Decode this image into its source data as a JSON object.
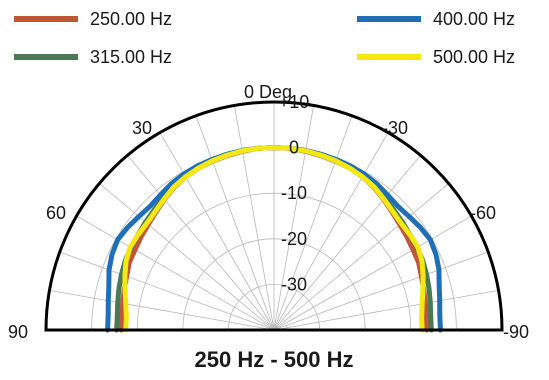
{
  "chart_data": {
    "type": "polar",
    "title": "250 Hz - 500 Hz",
    "angle_labels": [
      "90",
      "60",
      "30",
      "0 Deg",
      "-30",
      "-60",
      "-90"
    ],
    "angle_values": [
      90,
      60,
      30,
      0,
      -30,
      -60,
      -90
    ],
    "radial_ticks": [
      "+10",
      "0",
      "-10",
      "-20",
      "-30"
    ],
    "radial_values": [
      10,
      0,
      -10,
      -20,
      -30
    ],
    "rlim": [
      -40,
      10
    ],
    "grid": true,
    "angle_grid_step_deg": 10,
    "legend_position": "top",
    "series": [
      {
        "name": "250.00 Hz",
        "color": "#c0553a",
        "angles": [
          90,
          85,
          80,
          75,
          70,
          65,
          60,
          55,
          50,
          45,
          40,
          35,
          30,
          25,
          20,
          15,
          10,
          5,
          0,
          -5,
          -10,
          -15,
          -20,
          -25,
          -30,
          -35,
          -40,
          -45,
          -50,
          -55,
          -60,
          -65,
          -70,
          -75,
          -80,
          -85,
          -90
        ],
        "values": [
          -6.5,
          -6.5,
          -6.3,
          -6,
          -5.6,
          -5,
          -4.8,
          -4.4,
          -4,
          -3.4,
          -2.6,
          -1.8,
          -1.2,
          -0.8,
          -0.6,
          -0.4,
          -0.2,
          0,
          0,
          0,
          -0.2,
          -0.4,
          -0.6,
          -0.8,
          -1.2,
          -1.8,
          -2.6,
          -3.4,
          -4,
          -4.4,
          -4.8,
          -5,
          -5.6,
          -6,
          -6.3,
          -6.5,
          -6.5
        ]
      },
      {
        "name": "315.00 Hz",
        "color": "#4a7a55",
        "angles": [
          90,
          85,
          80,
          75,
          70,
          65,
          60,
          55,
          50,
          45,
          40,
          35,
          30,
          25,
          20,
          15,
          10,
          5,
          0,
          -5,
          -10,
          -15,
          -20,
          -25,
          -30,
          -35,
          -40,
          -45,
          -50,
          -55,
          -60,
          -65,
          -70,
          -75,
          -80,
          -85,
          -90
        ],
        "values": [
          -5.5,
          -5.5,
          -5.2,
          -4.8,
          -4.4,
          -4,
          -3.8,
          -3.6,
          -3.2,
          -2.8,
          -2.2,
          -1.5,
          -1,
          -0.6,
          -0.4,
          -0.3,
          -0.1,
          0,
          0,
          0,
          -0.1,
          -0.3,
          -0.4,
          -0.6,
          -1,
          -1.5,
          -2.2,
          -2.8,
          -3.2,
          -3.6,
          -3.8,
          -4,
          -4.4,
          -4.8,
          -5.2,
          -5.5,
          -5.5
        ]
      },
      {
        "name": "400.00 Hz",
        "color": "#1f6fb8",
        "angles": [
          90,
          85,
          80,
          75,
          70,
          65,
          60,
          55,
          50,
          45,
          40,
          35,
          30,
          25,
          20,
          15,
          10,
          5,
          0,
          -5,
          -10,
          -15,
          -20,
          -25,
          -30,
          -35,
          -40,
          -45,
          -50,
          -55,
          -60,
          -65,
          -70,
          -75,
          -80,
          -85,
          -90
        ],
        "values": [
          -3.5,
          -3.5,
          -3.1,
          -2.5,
          -1.5,
          -0.8,
          -0.4,
          -0.8,
          -1.3,
          -1.6,
          -1.3,
          -0.8,
          -0.5,
          -0.3,
          -0.2,
          -0.1,
          0,
          0,
          0,
          0,
          0,
          -0.1,
          -0.2,
          -0.3,
          -0.5,
          -0.8,
          -1.3,
          -1.6,
          -1.3,
          -0.8,
          -0.4,
          -0.8,
          -1.5,
          -2.5,
          -3.1,
          -3.5,
          -3.5
        ]
      },
      {
        "name": "500.00 Hz",
        "color": "#f4e812",
        "angles": [
          90,
          85,
          80,
          75,
          70,
          65,
          60,
          55,
          50,
          45,
          40,
          35,
          30,
          25,
          20,
          15,
          10,
          5,
          0,
          -5,
          -10,
          -15,
          -20,
          -25,
          -30,
          -35,
          -40,
          -45,
          -50,
          -55,
          -60,
          -65,
          -70,
          -75,
          -80,
          -85,
          -90
        ],
        "values": [
          -7.5,
          -7.5,
          -7,
          -6.2,
          -5.2,
          -4.2,
          -3.6,
          -3.6,
          -3.6,
          -3.2,
          -2.5,
          -1.7,
          -1.2,
          -0.8,
          -0.5,
          -0.3,
          -0.1,
          0,
          0,
          0,
          -0.1,
          -0.3,
          -0.5,
          -0.8,
          -1.2,
          -1.7,
          -2.5,
          -3.2,
          -3.6,
          -3.6,
          -3.6,
          -4.2,
          -5.2,
          -6.2,
          -7,
          -7.5,
          -7.5
        ]
      }
    ]
  }
}
